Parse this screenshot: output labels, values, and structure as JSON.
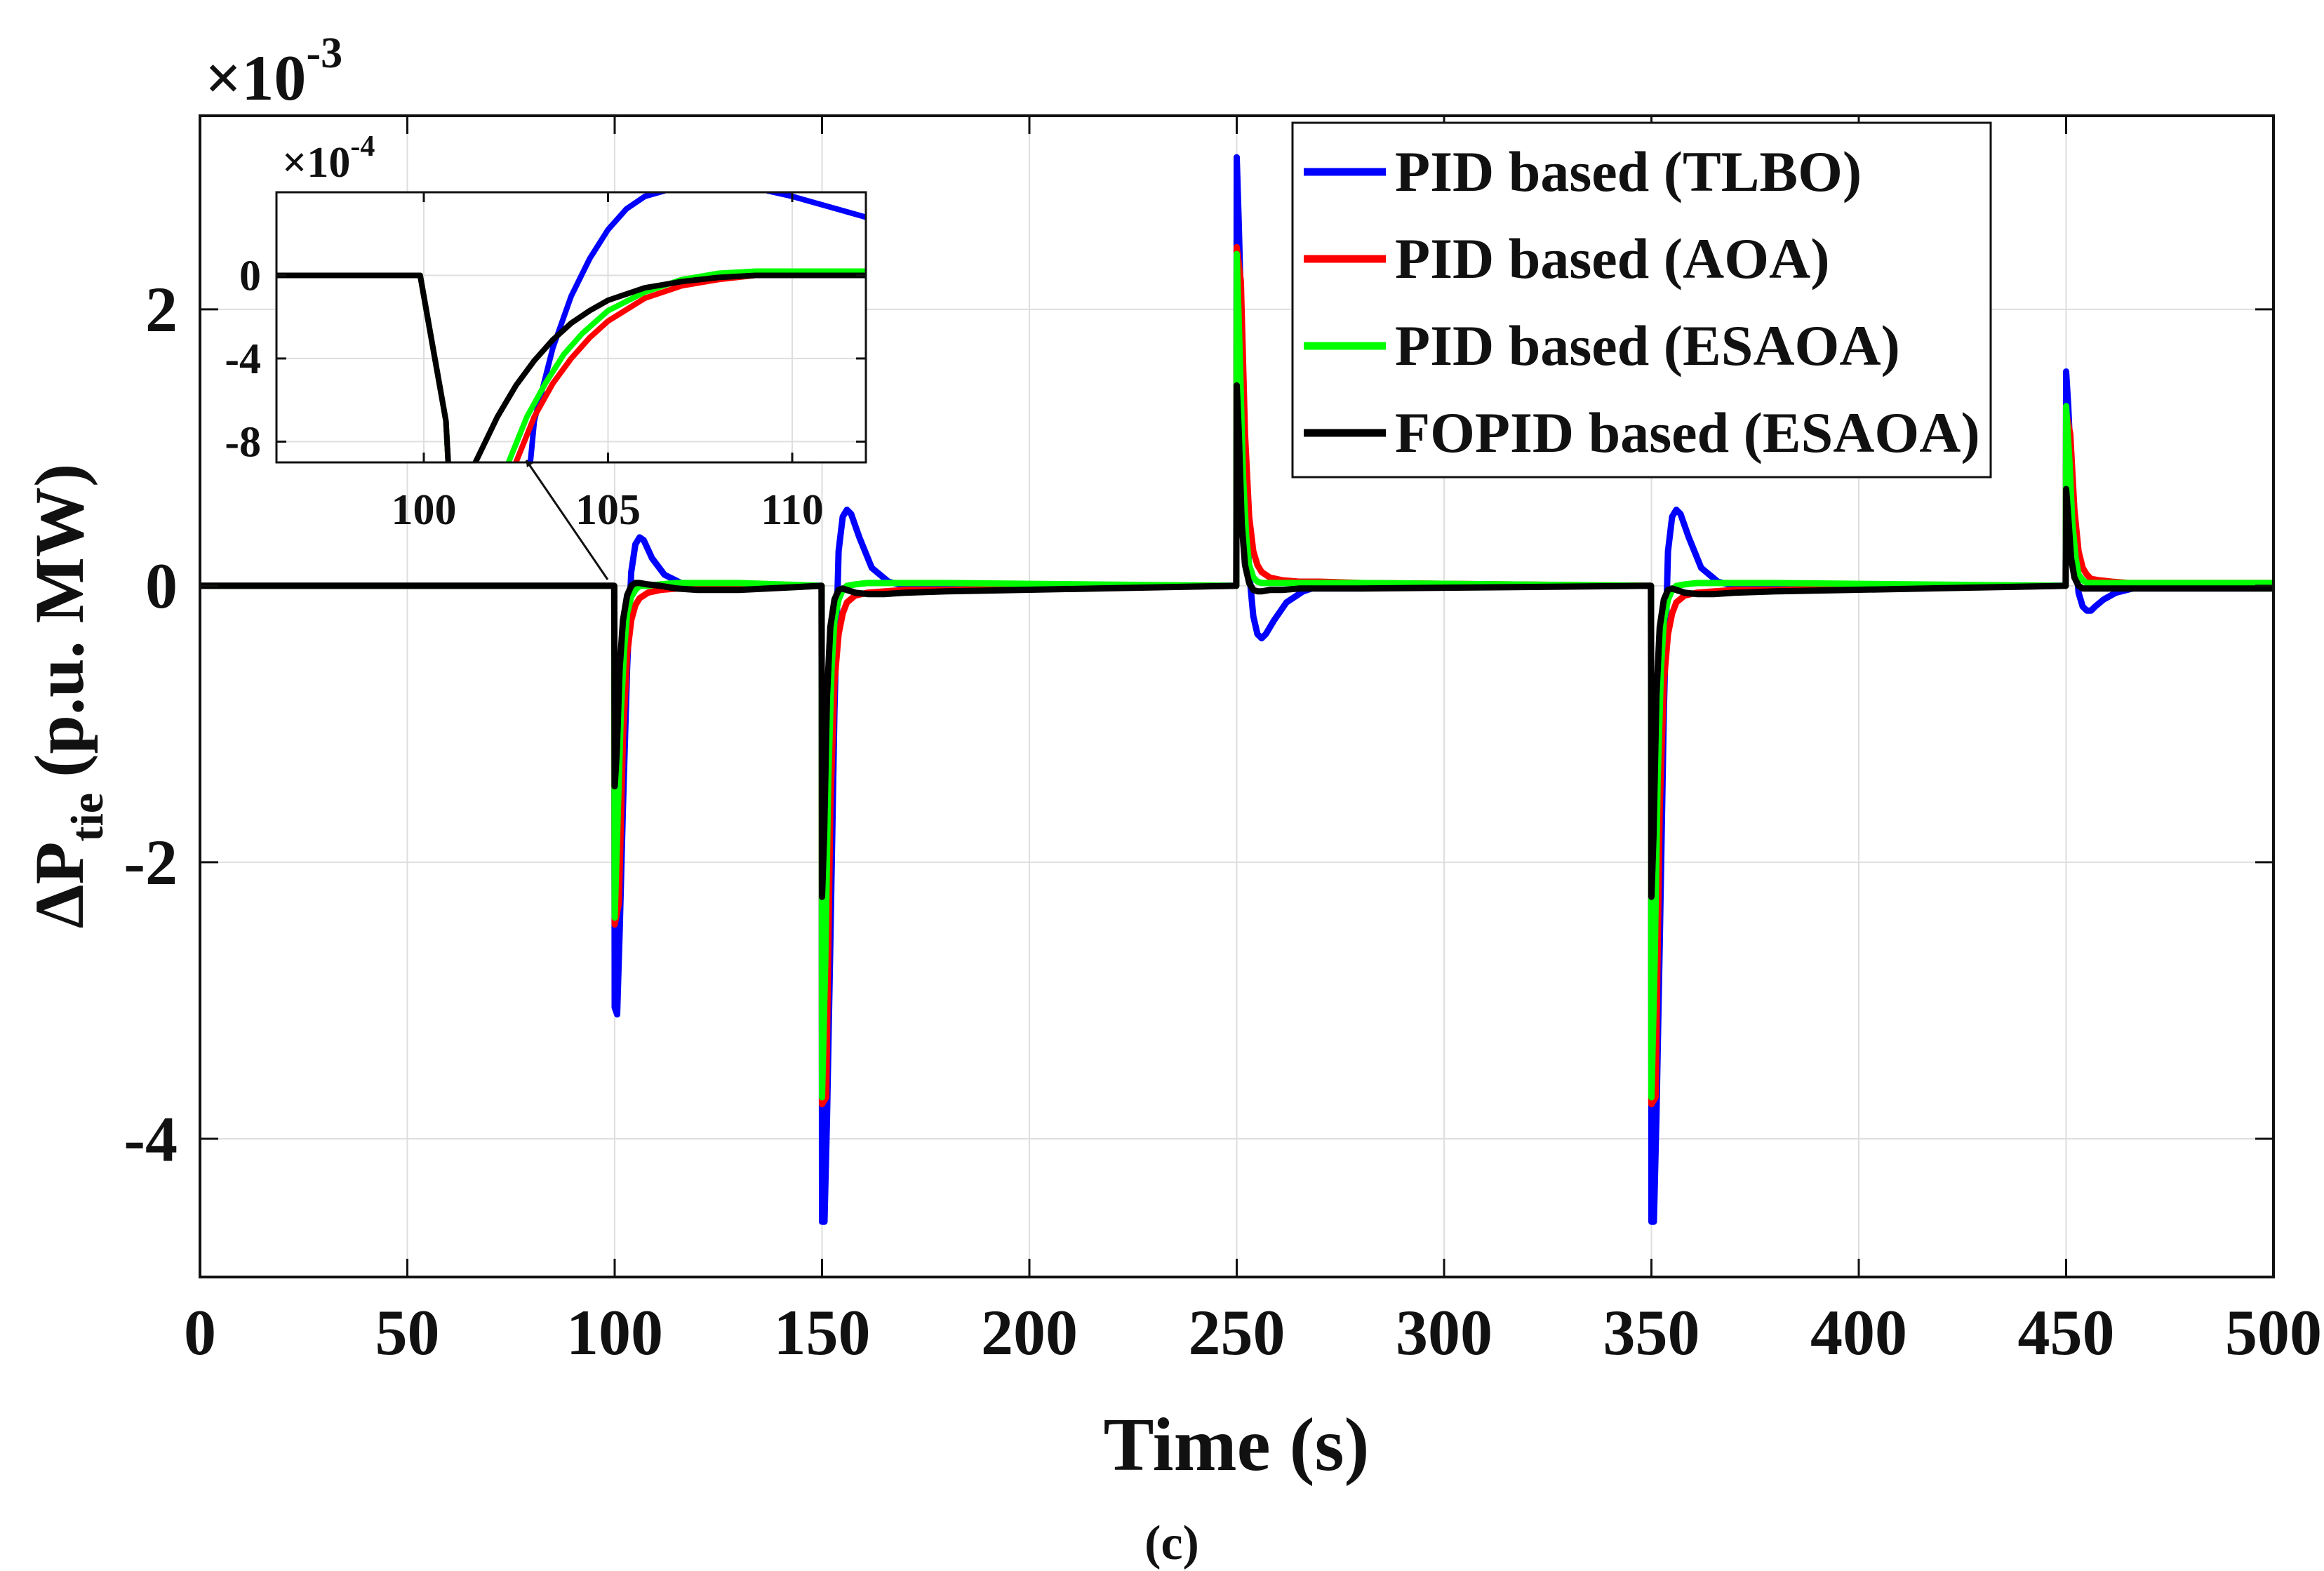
{
  "caption": "(c)",
  "chart_data": [
    {
      "id": "main",
      "type": "line",
      "xlabel": "Time (s)",
      "ylabel_main": "ΔP",
      "ylabel_sub": "tie",
      "ylabel_units": "(p.u. MW)",
      "y_exponent_base": "×10",
      "y_exponent_power": "-3",
      "xlim": [
        0,
        500
      ],
      "ylim": [
        -5,
        3.4
      ],
      "xticks": [
        0,
        50,
        100,
        150,
        200,
        250,
        300,
        350,
        400,
        450,
        500
      ],
      "xtick_labels": [
        "0",
        "50",
        "100",
        "150",
        "200",
        "250",
        "300",
        "350",
        "400",
        "450",
        "500"
      ],
      "yticks": [
        -4,
        -2,
        0,
        2
      ],
      "ytick_labels": [
        "-4",
        "-2",
        "0",
        "2"
      ],
      "grid": true,
      "legend_position": "top-right",
      "series": [
        {
          "name": "PID based (TLBO)",
          "color": "#0000ff",
          "x": [
            0,
            99.9,
            100,
            100.6,
            101.2,
            102,
            103,
            104,
            105,
            106,
            107,
            109,
            112,
            116,
            120,
            130,
            149.9,
            150,
            150.6,
            151.2,
            152,
            153,
            154,
            155,
            156,
            157,
            159,
            162,
            166,
            170,
            180,
            249.9,
            250,
            250.5,
            251.2,
            252,
            253,
            254,
            255,
            256,
            257,
            259,
            262,
            266,
            270,
            280,
            349.9,
            350,
            350.6,
            351.2,
            352,
            353,
            354,
            355,
            356,
            357,
            359,
            362,
            366,
            370,
            380,
            449.9,
            450,
            450.5,
            451.2,
            452,
            453,
            454,
            455,
            456,
            457,
            459,
            462,
            466,
            470,
            480,
            500
          ],
          "y": [
            0,
            0,
            -3.05,
            -3.1,
            -2.5,
            -1.6,
            -0.6,
            0.1,
            0.3,
            0.35,
            0.33,
            0.2,
            0.08,
            0.02,
            0,
            0,
            0,
            -4.6,
            -4.6,
            -3.85,
            -2.6,
            -0.9,
            0.25,
            0.5,
            0.55,
            0.52,
            0.35,
            0.13,
            0.03,
            0,
            0,
            0,
            3.1,
            2.6,
            1.8,
            0.9,
            0.1,
            -0.22,
            -0.35,
            -0.38,
            -0.35,
            -0.25,
            -0.12,
            -0.04,
            0,
            0,
            0,
            -4.6,
            -4.6,
            -3.85,
            -2.6,
            -0.9,
            0.25,
            0.5,
            0.55,
            0.52,
            0.35,
            0.13,
            0.03,
            0,
            0,
            0,
            1.55,
            1.3,
            0.85,
            0.3,
            -0.05,
            -0.15,
            -0.18,
            -0.18,
            -0.15,
            -0.1,
            -0.05,
            -0.02,
            0,
            0,
            0
          ]
        },
        {
          "name": "PID based (AOA)",
          "color": "#ff0000",
          "x": [
            0,
            99.9,
            100,
            101,
            102,
            103,
            104,
            105,
            106,
            108,
            111,
            115,
            120,
            130,
            149.9,
            150,
            151,
            152,
            153,
            154,
            155,
            156,
            158,
            161,
            165,
            170,
            180,
            249.9,
            250,
            251,
            252,
            253,
            254,
            255,
            256,
            258,
            261,
            265,
            270,
            280,
            349.9,
            350,
            351,
            352,
            353,
            354,
            355,
            356,
            358,
            361,
            365,
            370,
            380,
            449.9,
            450,
            451,
            452,
            453,
            454,
            455,
            456,
            458,
            461,
            465,
            470,
            480,
            500
          ],
          "y": [
            0,
            0,
            -2.45,
            -2.3,
            -1.1,
            -0.5,
            -0.25,
            -0.14,
            -0.09,
            -0.05,
            -0.03,
            -0.02,
            -0.02,
            -0.02,
            0,
            -3.75,
            -3.7,
            -1.6,
            -0.7,
            -0.35,
            -0.2,
            -0.12,
            -0.07,
            -0.05,
            -0.04,
            -0.03,
            -0.03,
            0,
            2.45,
            2.2,
            1.1,
            0.5,
            0.25,
            0.15,
            0.1,
            0.06,
            0.04,
            0.03,
            0.03,
            0.02,
            0,
            -3.75,
            -3.7,
            -1.6,
            -0.7,
            -0.35,
            -0.2,
            -0.12,
            -0.07,
            -0.05,
            -0.04,
            -0.03,
            -0.03,
            0,
            1.25,
            1.1,
            0.55,
            0.25,
            0.13,
            0.08,
            0.05,
            0.04,
            0.03,
            0.02,
            0.02,
            0.02,
            0.02
          ]
        },
        {
          "name": "PID based (ESAOA)",
          "color": "#00ff00",
          "x": [
            0,
            99.9,
            100,
            100.8,
            101.5,
            102.3,
            103,
            104,
            105,
            106,
            108,
            111,
            115,
            120,
            130,
            149.9,
            150,
            150.8,
            151.5,
            152.3,
            153,
            154,
            155,
            156,
            158,
            161,
            165,
            170,
            180,
            249.9,
            250,
            250.8,
            251.5,
            252.3,
            253,
            254,
            255,
            256,
            258,
            261,
            265,
            270,
            280,
            349.9,
            350,
            350.8,
            351.5,
            352.3,
            353,
            354,
            355,
            356,
            358,
            361,
            365,
            370,
            380,
            449.9,
            450,
            450.8,
            451.5,
            452.3,
            453,
            454,
            455,
            456,
            458,
            461,
            465,
            470,
            480,
            500
          ],
          "y": [
            0,
            0,
            -2.4,
            -1.6,
            -0.9,
            -0.45,
            -0.2,
            -0.08,
            -0.03,
            0,
            0,
            0.01,
            0.02,
            0.02,
            0.02,
            0,
            -3.7,
            -2.7,
            -1.4,
            -0.6,
            -0.25,
            -0.1,
            -0.03,
            0,
            0.01,
            0.02,
            0.02,
            0.02,
            0.02,
            0,
            2.4,
            1.6,
            0.8,
            0.35,
            0.15,
            0.06,
            0.03,
            0.02,
            0.02,
            0.02,
            0.02,
            0.02,
            0.02,
            0,
            -3.7,
            -2.7,
            -1.4,
            -0.6,
            -0.25,
            -0.1,
            -0.03,
            0,
            0.01,
            0.02,
            0.02,
            0.02,
            0.02,
            0,
            1.3,
            0.9,
            0.45,
            0.2,
            0.08,
            0.04,
            0.02,
            0.02,
            0.02,
            0.02,
            0.02,
            0.02,
            0.02,
            0.02
          ]
        },
        {
          "name": "FOPID based (ESAOA)",
          "color": "#000000",
          "x": [
            0,
            99.9,
            100,
            100.5,
            101.2,
            102,
            103,
            104,
            105,
            106,
            108,
            111,
            115,
            120,
            130,
            149.9,
            150,
            150.5,
            151.2,
            152,
            153,
            154,
            155,
            156,
            158,
            161,
            165,
            170,
            180,
            249.9,
            250,
            250.5,
            251.2,
            252,
            253,
            254,
            255,
            256,
            258,
            261,
            265,
            270,
            280,
            349.9,
            350,
            350.5,
            351.2,
            352,
            353,
            354,
            355,
            356,
            358,
            361,
            365,
            370,
            380,
            449.9,
            450,
            450.5,
            451.2,
            452,
            453,
            454,
            455,
            456,
            458,
            461,
            465,
            470,
            480,
            500
          ],
          "y": [
            0,
            0,
            -1.45,
            -1.2,
            -0.6,
            -0.25,
            -0.07,
            0,
            0.02,
            0.02,
            0.01,
            0,
            -0.02,
            -0.03,
            -0.03,
            0,
            -2.25,
            -1.8,
            -0.8,
            -0.3,
            -0.1,
            -0.03,
            -0.02,
            -0.03,
            -0.05,
            -0.06,
            -0.06,
            -0.05,
            -0.04,
            0,
            1.45,
            1.1,
            0.45,
            0.15,
            0.02,
            -0.03,
            -0.04,
            -0.04,
            -0.03,
            -0.03,
            -0.02,
            -0.02,
            -0.02,
            0,
            -2.25,
            -1.8,
            -0.8,
            -0.3,
            -0.1,
            -0.03,
            -0.02,
            -0.03,
            -0.05,
            -0.06,
            -0.06,
            -0.05,
            -0.04,
            0,
            0.7,
            0.5,
            0.2,
            0.06,
            0,
            -0.02,
            -0.02,
            -0.02,
            -0.02,
            -0.02,
            -0.02,
            -0.02,
            -0.02,
            -0.02
          ]
        }
      ]
    },
    {
      "id": "inset",
      "type": "line",
      "y_exponent_base": "×10",
      "y_exponent_power": "-4",
      "xlim": [
        96,
        112
      ],
      "ylim": [
        -9,
        4
      ],
      "xticks": [
        100,
        105,
        110
      ],
      "xtick_labels": [
        "100",
        "105",
        "110"
      ],
      "yticks": [
        -8,
        -4,
        0
      ],
      "ytick_labels": [
        "-8",
        "-4",
        "0"
      ],
      "grid": true,
      "series": [
        {
          "name": "PID based (TLBO)",
          "color": "#0000ff",
          "x": [
            96,
            99.9,
            100.2,
            100.6,
            101,
            102.3,
            103,
            103.5,
            104,
            104.5,
            105,
            105.5,
            106,
            107,
            108,
            109,
            110,
            111,
            112
          ],
          "y": [
            0,
            0,
            -3,
            -7,
            -20,
            -20,
            -7,
            -3.5,
            -1,
            0.8,
            2.2,
            3.2,
            3.8,
            4.3,
            4.4,
            4.2,
            3.8,
            3.3,
            2.8
          ]
        },
        {
          "name": "PID based (AOA)",
          "color": "#ff0000",
          "x": [
            96,
            99.9,
            100.2,
            100.6,
            101,
            102.5,
            103,
            103.5,
            104,
            104.5,
            105,
            106,
            107,
            108,
            109,
            110,
            111,
            112
          ],
          "y": [
            0,
            0,
            -3,
            -7,
            -20,
            -9,
            -6.8,
            -5.2,
            -4,
            -3,
            -2.2,
            -1.1,
            -0.5,
            -0.2,
            0,
            0.1,
            0.2,
            0.2
          ]
        },
        {
          "name": "PID based (ESAOA)",
          "color": "#00ff00",
          "x": [
            96,
            99.9,
            100.2,
            100.6,
            101,
            102.3,
            102.8,
            103.3,
            103.8,
            104.3,
            105,
            106,
            107,
            108,
            109,
            110,
            111,
            112
          ],
          "y": [
            0,
            0,
            -3,
            -7,
            -20,
            -9,
            -6.8,
            -5.2,
            -3.8,
            -2.8,
            -1.7,
            -0.8,
            -0.2,
            0.1,
            0.2,
            0.2,
            0.2,
            0.2
          ]
        },
        {
          "name": "FOPID based (ESAOA)",
          "color": "#000000",
          "x": [
            96,
            99.9,
            100.2,
            100.6,
            101,
            101.4,
            102,
            102.5,
            103,
            103.5,
            104,
            104.5,
            105,
            106,
            107,
            108,
            109,
            110,
            111,
            112
          ],
          "y": [
            0,
            0,
            -3,
            -7,
            -20,
            -9,
            -6.8,
            -5.3,
            -4.1,
            -3.1,
            -2.3,
            -1.7,
            -1.2,
            -0.6,
            -0.3,
            -0.1,
            0,
            0,
            0,
            0
          ]
        }
      ]
    }
  ]
}
